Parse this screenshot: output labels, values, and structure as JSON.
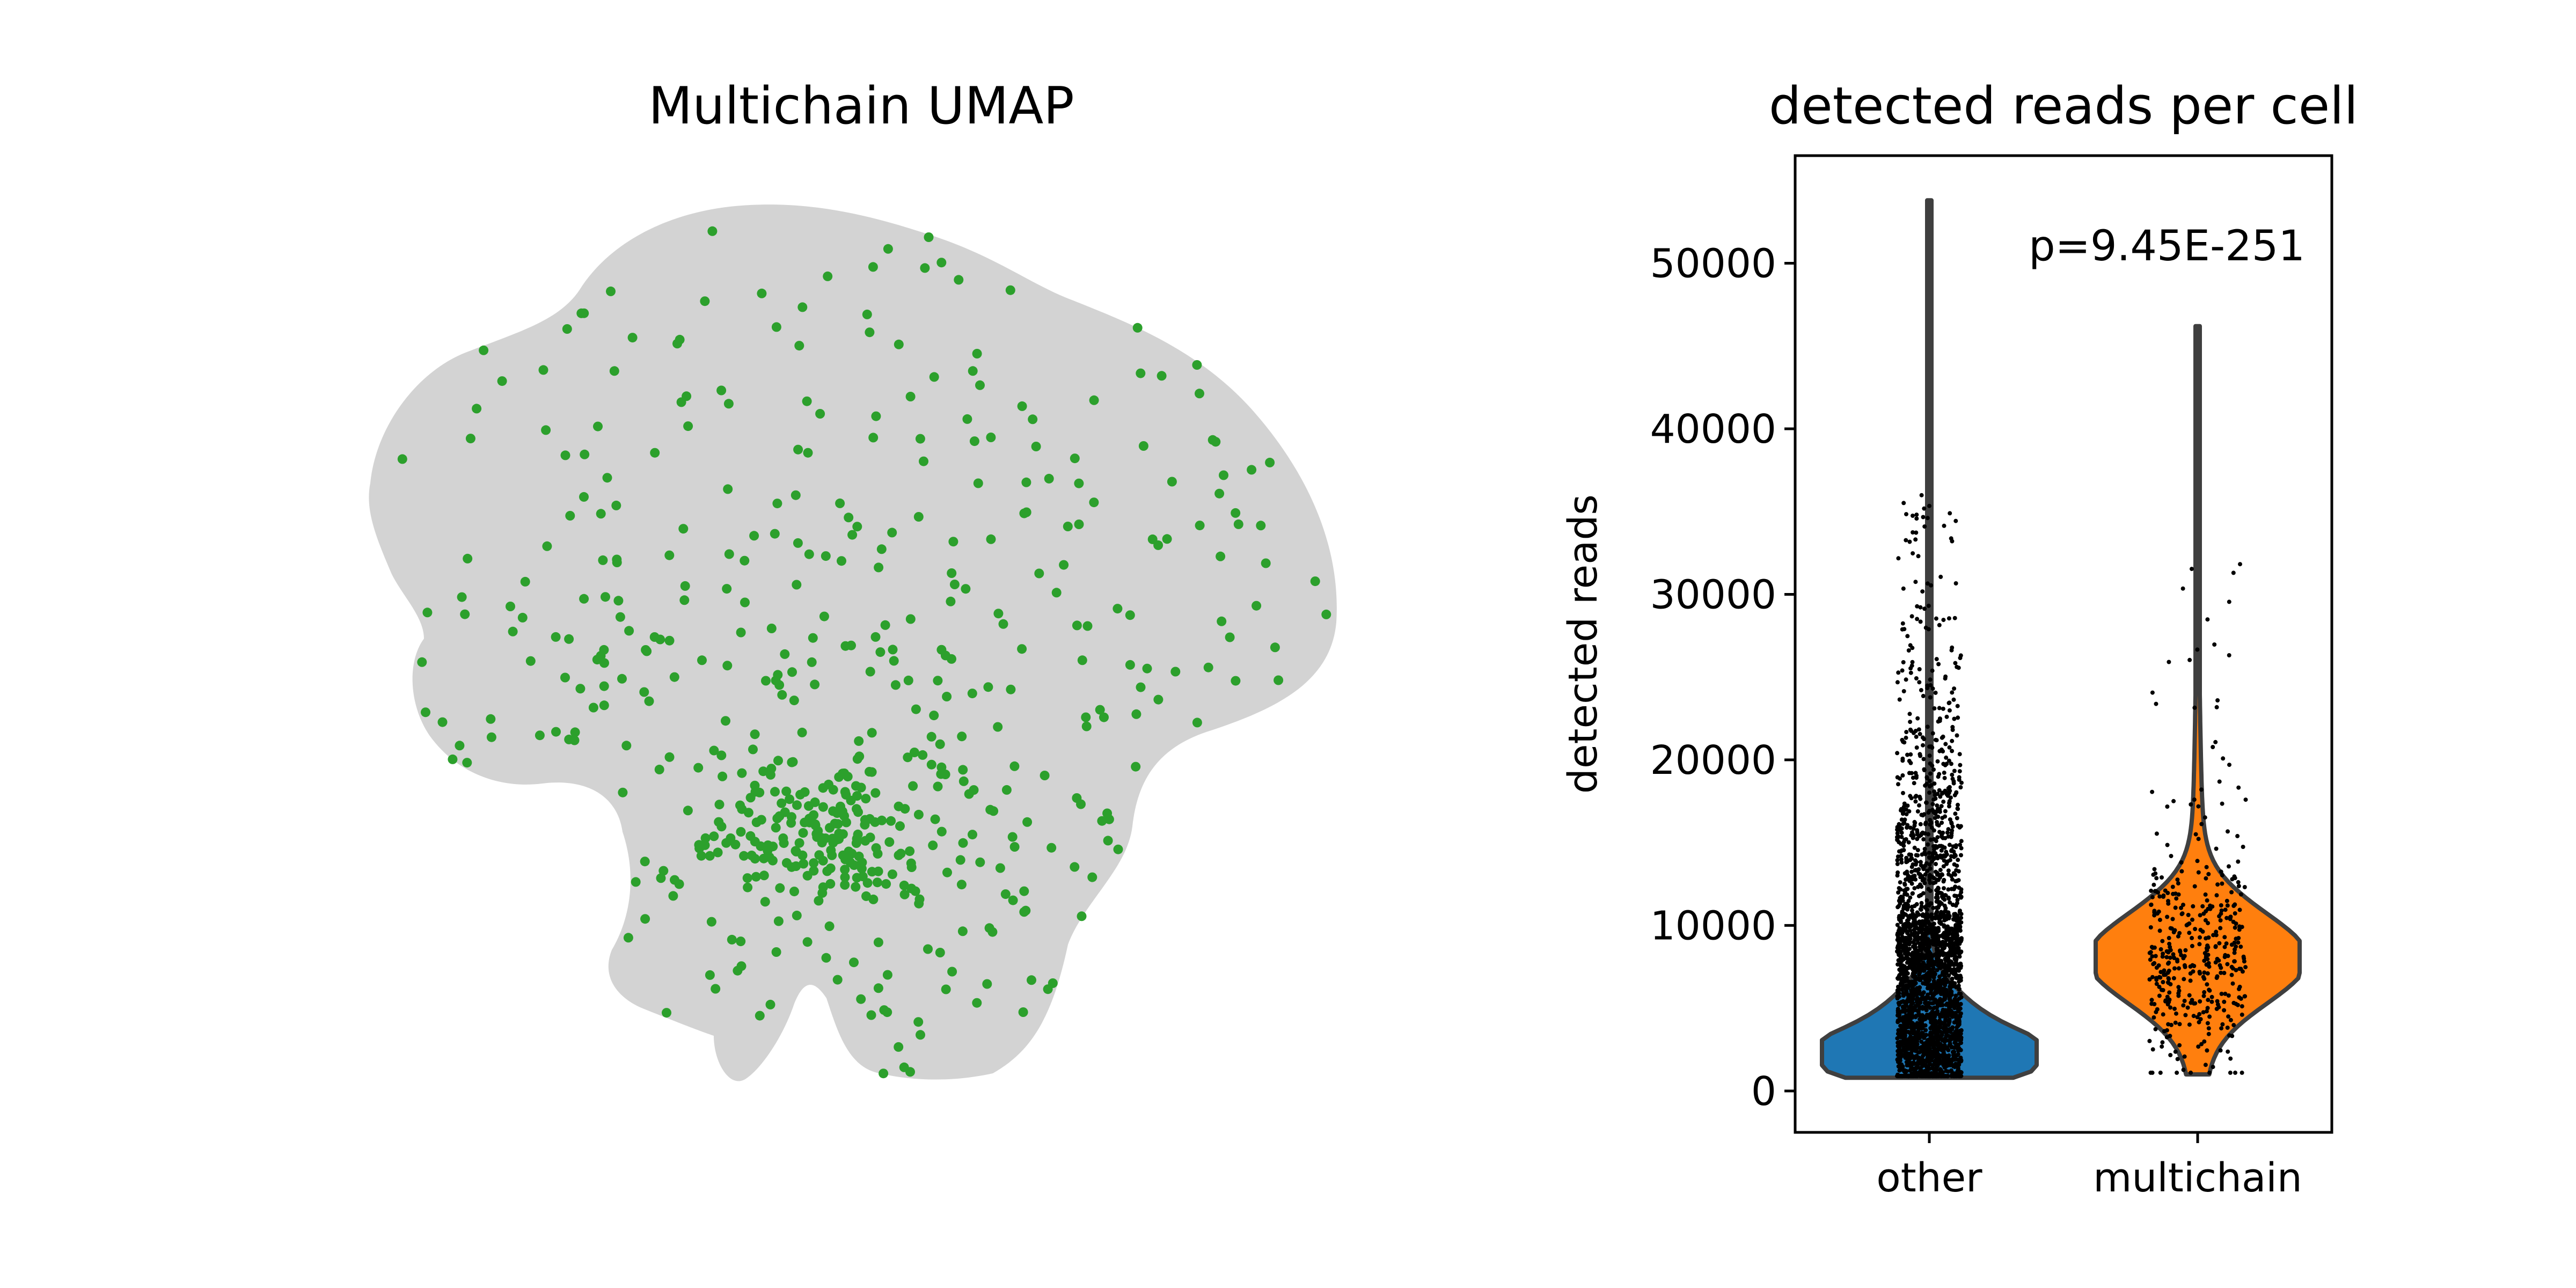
{
  "chart_data": [
    {
      "type": "scatter",
      "title": "Multichain UMAP",
      "background_color": "#d3d3d3",
      "highlight_color": "#2ca02c",
      "series": [
        {
          "name": "multichain",
          "color": "#2ca02c"
        }
      ],
      "xlabel": "",
      "ylabel": "",
      "grid": false
    },
    {
      "type": "violin",
      "title": "detected reads per cell",
      "categories": [
        "other",
        "multichain"
      ],
      "ylabel": "detected reads",
      "yticks": [
        0,
        10000,
        20000,
        30000,
        40000,
        50000
      ],
      "ytick_labels": [
        "0",
        "10000",
        "20000",
        "30000",
        "40000",
        "50000"
      ],
      "ylim": [
        -2500,
        56500
      ],
      "annotation": "p=9.45E-251",
      "colors": {
        "other": "#1f77b4",
        "multichain": "#ff7f0e"
      },
      "series": [
        {
          "category": "other",
          "min": 800,
          "max": 53800,
          "peak": 2000,
          "median": 2800
        },
        {
          "category": "multichain",
          "min": 1000,
          "max": 46200,
          "peak": 8000,
          "median": 8500
        }
      ],
      "grid": false
    }
  ]
}
